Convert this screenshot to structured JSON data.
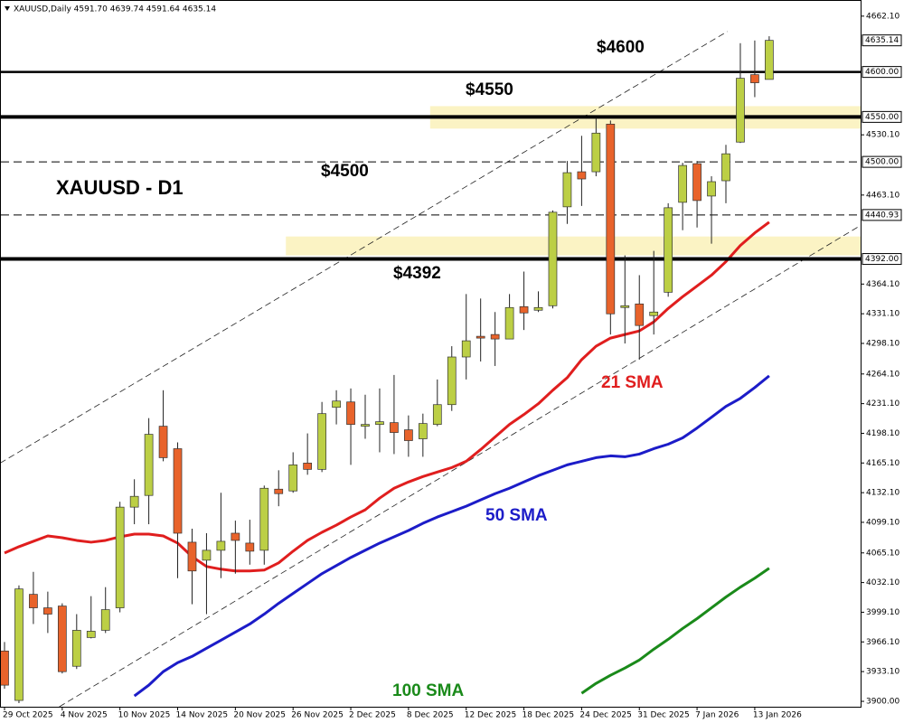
{
  "chart_data": {
    "type": "candlestick",
    "header": "XAUUSD,Daily  4591.70 4639.74 4591.64 4635.14",
    "title": "XAUUSD - D1",
    "categories": [
      "29 Oct 2025",
      null,
      null,
      null,
      "4 Nov 2025",
      null,
      null,
      null,
      "10 Nov 2025",
      null,
      null,
      null,
      "14 Nov 2025",
      null,
      null,
      null,
      "20 Nov 2025",
      null,
      null,
      null,
      "26 Nov 2025",
      null,
      null,
      null,
      "2 Dec 2025",
      null,
      null,
      null,
      "8 Dec 2025",
      null,
      null,
      null,
      "12 Dec 2025",
      null,
      null,
      null,
      "18 Dec 2025",
      null,
      null,
      null,
      "24 Dec 2025",
      null,
      null,
      null,
      "31 Dec 2025",
      null,
      null,
      null,
      "7 Jan 2026",
      null,
      null,
      null,
      "13 Jan 2026",
      null
    ],
    "open": [
      3956,
      3901,
      4019,
      4004,
      4006,
      3939,
      3971,
      3979,
      4004,
      4116,
      4129,
      4206,
      4181,
      4077,
      4057,
      4068,
      4087,
      4076,
      4068,
      4136,
      4134,
      4165,
      4158,
      4227,
      4233,
      4206,
      4208,
      4210,
      4202,
      4192,
      4208,
      4230,
      4283,
      4306,
      4308,
      4303,
      4339,
      4335,
      4340,
      4450,
      4489,
      4489,
      4542,
      4338,
      4342,
      4329,
      4355,
      4455,
      4498,
      4462,
      4479,
      4522,
      4597,
      4591.7
    ],
    "high": [
      3966,
      4029,
      4044,
      4022,
      4009,
      3997,
      4017,
      4027,
      4122,
      4147,
      4215,
      4246,
      4188,
      4092,
      4087,
      4132,
      4101,
      4102,
      4140,
      4157,
      4177,
      4198,
      4233,
      4246,
      4248,
      4241,
      4248,
      4263,
      4218,
      4220,
      4258,
      4295,
      4353,
      4348,
      4333,
      4353,
      4378,
      4356,
      4446,
      4501,
      4529,
      4549,
      4546,
      4396,
      4374,
      4401,
      4454,
      4499,
      4501,
      4484,
      4519,
      4632,
      4635,
      4639.74
    ],
    "low": [
      3914,
      3898,
      3986,
      3976,
      3931,
      3936,
      3970,
      3976,
      3999,
      4097,
      4097,
      4167,
      4037,
      4008,
      3997,
      4037,
      4042,
      4052,
      4052,
      4117,
      4132,
      4152,
      4155,
      4208,
      4163,
      4192,
      4177,
      4175,
      4172,
      4172,
      4206,
      4223,
      4258,
      4278,
      4273,
      4303,
      4313,
      4333,
      4337,
      4431,
      4451,
      4484,
      4308,
      4298,
      4280,
      4308,
      4350,
      4424,
      4427,
      4409,
      4454,
      4521,
      4572,
      4591.64
    ],
    "close": [
      3918,
      4025,
      4004,
      3997,
      3933,
      3979,
      3978,
      4002,
      4116,
      4128,
      4197,
      4171,
      4087,
      4045,
      4068,
      4078,
      4079,
      4067,
      4137,
      4131,
      4163,
      4158,
      4220,
      4234,
      4208,
      4208,
      4211,
      4199,
      4190,
      4209,
      4230,
      4283,
      4301,
      4304,
      4303,
      4338,
      4332,
      4338,
      4444,
      4488,
      4481,
      4532,
      4331,
      4340,
      4318,
      4333,
      4449,
      4496,
      4457,
      4478,
      4509,
      4593,
      4588,
      4635.14
    ],
    "up_color": "#bccf45",
    "down_color": "#e8632b",
    "series": [
      {
        "name": "21 SMA",
        "color": "#e01e1e",
        "values": [
          4065,
          4072,
          4078,
          4084,
          4082,
          4079,
          4077,
          4079,
          4083,
          4086,
          4086,
          4084,
          4076,
          4061,
          4050,
          4047,
          4045,
          4045,
          4046,
          4054,
          4067,
          4079,
          4088,
          4096,
          4105,
          4113,
          4126,
          4137,
          4144,
          4150,
          4155,
          4160,
          4167,
          4180,
          4194,
          4208,
          4219,
          4231,
          4246,
          4260,
          4280,
          4295,
          4304,
          4308,
          4312,
          4322,
          4337,
          4350,
          4362,
          4374,
          4389,
          4407,
          4421,
          4433
        ]
      },
      {
        "name": "50 SMA",
        "color": "#1c1cc8",
        "values": [
          null,
          null,
          null,
          null,
          null,
          null,
          null,
          null,
          null,
          3906,
          3918,
          3933,
          3943,
          3950,
          3959,
          3968,
          3977,
          3986,
          3997,
          4009,
          4020,
          4031,
          4042,
          4051,
          4060,
          4068,
          4076,
          4083,
          4090,
          4098,
          4105,
          4111,
          4117,
          4124,
          4131,
          4137,
          4144,
          4151,
          4157,
          4163,
          4167,
          4171,
          4173,
          4172,
          4175,
          4181,
          4186,
          4193,
          4204,
          4216,
          4228,
          4237,
          4249,
          4262
        ]
      },
      {
        "name": "100 SMA",
        "color": "#1a8a1a",
        "values": [
          null,
          null,
          null,
          null,
          null,
          null,
          null,
          null,
          null,
          null,
          null,
          null,
          null,
          null,
          null,
          null,
          null,
          null,
          null,
          null,
          null,
          null,
          null,
          null,
          null,
          null,
          null,
          null,
          null,
          null,
          null,
          null,
          null,
          null,
          null,
          null,
          null,
          null,
          null,
          null,
          3909,
          3920,
          3929,
          3937,
          3946,
          3958,
          3969,
          3981,
          3992,
          4004,
          4016,
          4027,
          4037,
          4048
        ]
      }
    ],
    "levels": [
      {
        "value": 4600,
        "label": "4600.00",
        "text": "$4600",
        "style": "solid",
        "width": 2.5
      },
      {
        "value": 4550,
        "label": "4550.00",
        "text": "$4550",
        "style": "solid",
        "width": 4
      },
      {
        "value": 4500,
        "label": "4500.00",
        "text": "$4500",
        "style": "dashed",
        "width": 1
      },
      {
        "value": 4440.93,
        "label": "4440.93",
        "style": "dashed",
        "width": 1
      },
      {
        "value": 4392,
        "label": "4392.00",
        "text": "$4392",
        "style": "solid",
        "width": 4
      }
    ],
    "zones": [
      {
        "range": [
          4537,
          4562
        ],
        "start": 30,
        "color": "#fbf3c4"
      },
      {
        "range": [
          4396,
          4417
        ],
        "start": 20,
        "color": "#fbf3c4"
      }
    ],
    "channel": [
      [
        [
          -0.3,
          4165
        ],
        [
          50.1,
          4645
        ]
      ],
      [
        [
          3.8,
          3894
        ],
        [
          59.3,
          4429
        ]
      ]
    ],
    "current_price": 4635.14,
    "ylim": [
      3894,
      4672
    ],
    "yticks": [
      {
        "value": 4662.1,
        "label": "4662.10"
      },
      {
        "value": 4530.1,
        "label": "4530.10"
      },
      {
        "value": 4463.1,
        "label": "4463.10"
      },
      {
        "value": 4364.1,
        "label": "4364.10"
      },
      {
        "value": 4331.1,
        "label": "4331.10"
      },
      {
        "value": 4298.1,
        "label": "4298.10"
      },
      {
        "value": 4264.1,
        "label": "4264.10"
      },
      {
        "value": 4231.1,
        "label": "4231.10"
      },
      {
        "value": 4198.1,
        "label": "4198.10"
      },
      {
        "value": 4165.1,
        "label": "4165.10"
      },
      {
        "value": 4132.1,
        "label": "4132.10"
      },
      {
        "value": 4099.1,
        "label": "4099.10"
      },
      {
        "value": 4065.1,
        "label": "4065.10"
      },
      {
        "value": 4032.1,
        "label": "4032.10"
      },
      {
        "value": 3999.1,
        "label": "3999.10"
      },
      {
        "value": 3966.1,
        "label": "3966.10"
      },
      {
        "value": 3933.1,
        "label": "3933.10"
      },
      {
        "value": 3900,
        "label": "3900.00"
      }
    ]
  }
}
